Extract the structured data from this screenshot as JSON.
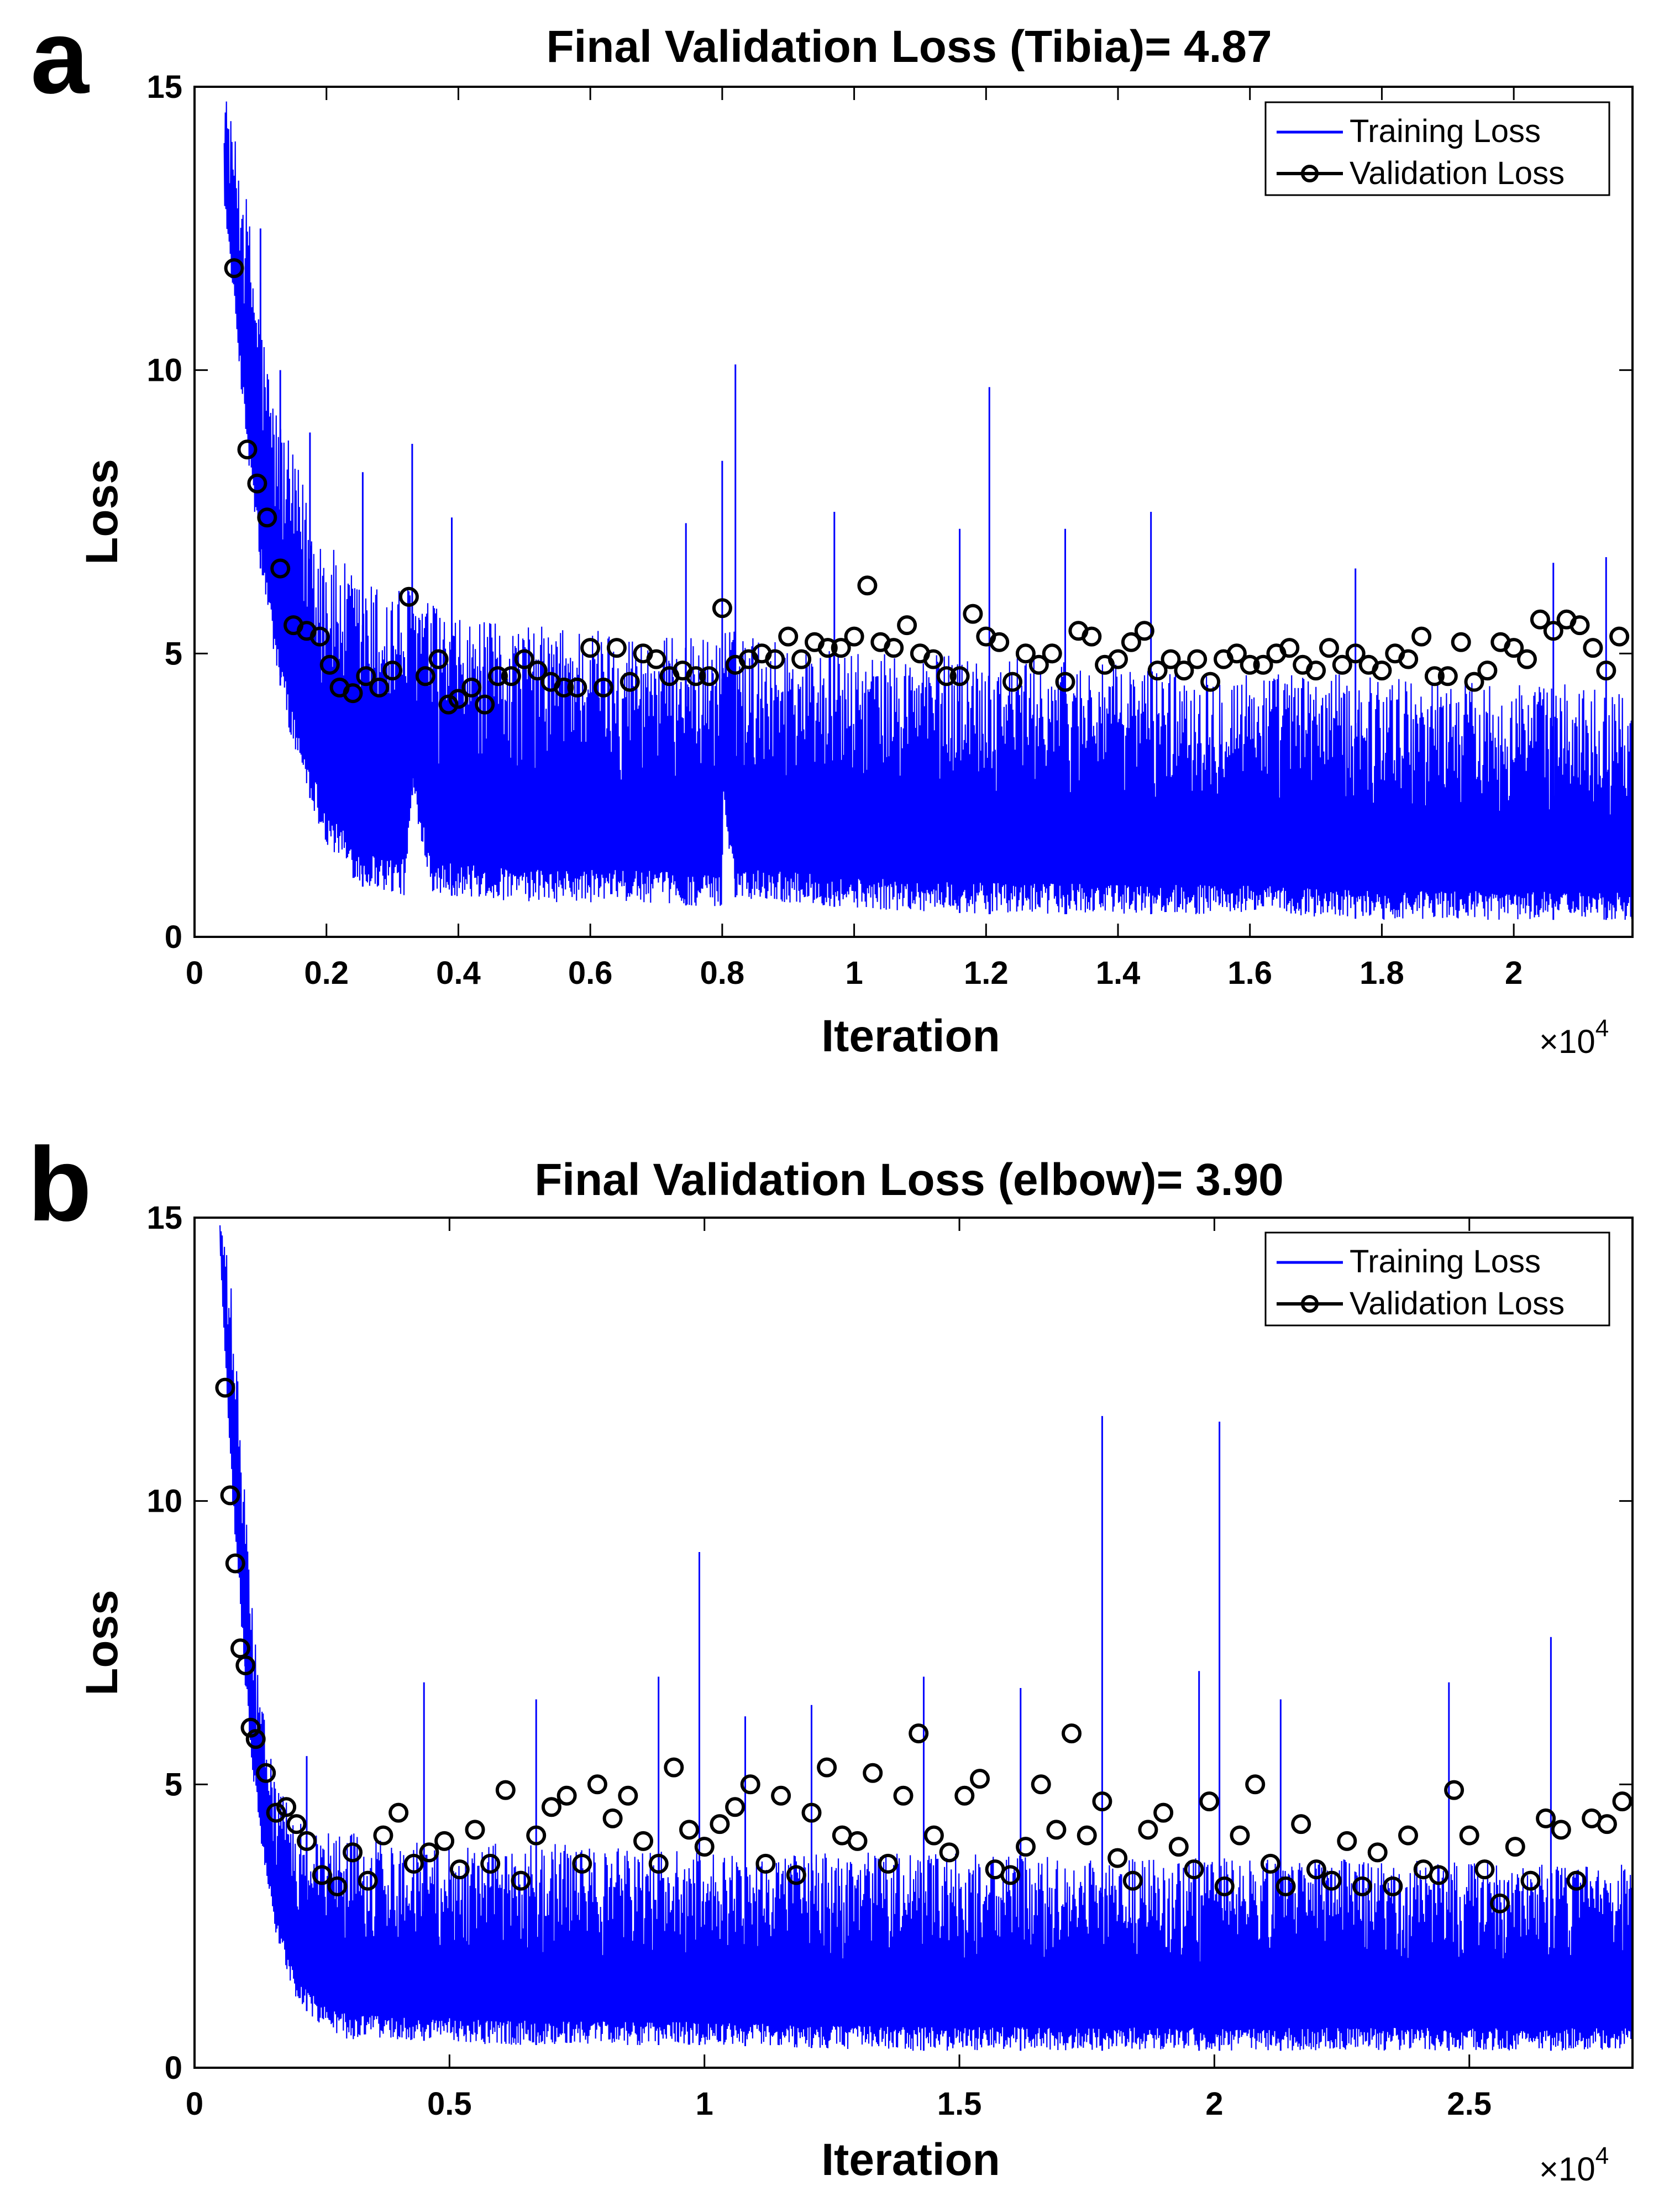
{
  "panels": [
    {
      "letter": "a",
      "multiplier_base": "×10",
      "multiplier_exp": "4",
      "chart_data": {
        "type": "line",
        "title": "Final Validation Loss (Tibia)= 4.87",
        "xlabel": "Iteration",
        "ylabel": "Loss",
        "xlim": [
          0,
          21800
        ],
        "ylim": [
          0,
          15
        ],
        "x_ticks": [
          0,
          2000,
          4000,
          6000,
          8000,
          10000,
          12000,
          14000,
          16000,
          18000,
          20000
        ],
        "x_tick_labels": [
          "0",
          "0.2",
          "0.4",
          "0.6",
          "0.8",
          "1",
          "1.2",
          "1.4",
          "1.6",
          "1.8",
          "2"
        ],
        "y_ticks": [
          0,
          5,
          10,
          15
        ],
        "y_tick_labels": [
          "0",
          "5",
          "10",
          "15"
        ],
        "grid": false,
        "legend": {
          "position": "top-right",
          "entries": [
            "Training Loss",
            "Validation Loss"
          ]
        },
        "series": [
          {
            "name": "Training Loss",
            "color": "#0000ff",
            "style": "line",
            "envelope": {
              "x": [
                450,
                800,
                1000,
                1200,
                1500,
                2000,
                2500,
                3200,
                3300,
                3600,
                4000,
                5000,
                6000,
                7000,
                7990,
                8010,
                8200,
                9000,
                10000,
                12000,
                14000,
                16000,
                18000,
                20000,
                21800
              ],
              "lower": [
                13.0,
                8.5,
                6.5,
                5.0,
                3.3,
                1.6,
                0.9,
                0.7,
                2.5,
                0.8,
                0.7,
                0.6,
                0.6,
                0.6,
                0.5,
                2.4,
                0.7,
                0.6,
                0.5,
                0.4,
                0.4,
                0.4,
                0.3,
                0.3,
                0.3
              ],
              "upper": [
                15.0,
                13.0,
                11.0,
                9.5,
                8.5,
                7.0,
                6.3,
                6.2,
                6.2,
                5.9,
                5.6,
                5.5,
                5.5,
                5.3,
                5.3,
                5.5,
                5.4,
                5.2,
                5.0,
                5.0,
                4.8,
                4.7,
                4.6,
                4.5,
                4.4
              ]
            },
            "spikes": [
              {
                "x": 1000,
                "y": 12.5
              },
              {
                "x": 1300,
                "y": 10.0
              },
              {
                "x": 1750,
                "y": 8.9
              },
              {
                "x": 2550,
                "y": 8.2
              },
              {
                "x": 3300,
                "y": 8.7
              },
              {
                "x": 3900,
                "y": 7.4
              },
              {
                "x": 7450,
                "y": 7.3
              },
              {
                "x": 8000,
                "y": 8.4
              },
              {
                "x": 8200,
                "y": 10.1
              },
              {
                "x": 9700,
                "y": 7.5
              },
              {
                "x": 11600,
                "y": 7.2
              },
              {
                "x": 12050,
                "y": 9.7
              },
              {
                "x": 13200,
                "y": 7.2
              },
              {
                "x": 14500,
                "y": 7.5
              },
              {
                "x": 17600,
                "y": 6.5
              },
              {
                "x": 20600,
                "y": 6.6
              },
              {
                "x": 21400,
                "y": 6.7
              }
            ]
          },
          {
            "name": "Validation Loss",
            "color": "#000000",
            "style": "markers",
            "x": [
              600,
              800,
              950,
              1100,
              1300,
              1500,
              1700,
              1900,
              2050,
              2200,
              2400,
              2600,
              2800,
              3000,
              3250,
              3500,
              3700,
              3850,
              4000,
              4200,
              4400,
              4600,
              4800,
              5000,
              5200,
              5400,
              5600,
              5800,
              6000,
              6200,
              6400,
              6600,
              6800,
              7000,
              7200,
              7400,
              7600,
              7800,
              8000,
              8200,
              8400,
              8600,
              8800,
              9000,
              9200,
              9400,
              9600,
              9800,
              10000,
              10200,
              10400,
              10600,
              10800,
              11000,
              11200,
              11400,
              11600,
              11800,
              12000,
              12200,
              12400,
              12600,
              12800,
              13000,
              13200,
              13400,
              13600,
              13800,
              14000,
              14200,
              14400,
              14600,
              14800,
              15000,
              15200,
              15400,
              15600,
              15800,
              16000,
              16200,
              16400,
              16600,
              16800,
              17000,
              17200,
              17400,
              17600,
              17800,
              18000,
              18200,
              18400,
              18600,
              18800,
              19000,
              19200,
              19400,
              19600,
              19800,
              20000,
              20200,
              20400,
              20600,
              20800,
              21000,
              21200,
              21400,
              21600
            ],
            "y": [
              11.8,
              8.6,
              8.0,
              7.4,
              6.5,
              5.5,
              5.4,
              5.3,
              4.8,
              4.4,
              4.3,
              4.6,
              4.4,
              4.7,
              6.0,
              4.6,
              4.9,
              4.1,
              4.2,
              4.4,
              4.1,
              4.6,
              4.6,
              4.9,
              4.7,
              4.5,
              4.4,
              4.4,
              5.1,
              4.4,
              5.1,
              4.5,
              5.0,
              4.9,
              4.6,
              4.7,
              4.6,
              4.6,
              5.8,
              4.8,
              4.9,
              5.0,
              4.9,
              5.3,
              4.9,
              5.2,
              5.1,
              5.1,
              5.3,
              6.2,
              5.2,
              5.1,
              5.5,
              5.0,
              4.9,
              4.6,
              4.6,
              5.7,
              5.3,
              5.2,
              4.5,
              5.0,
              4.8,
              5.0,
              4.5,
              5.4,
              5.3,
              4.8,
              4.9,
              5.2,
              5.4,
              4.7,
              4.9,
              4.7,
              4.9,
              4.5,
              4.9,
              5.0,
              4.8,
              4.8,
              5.0,
              5.1,
              4.8,
              4.7,
              5.1,
              4.8,
              5.0,
              4.8,
              4.7,
              5.0,
              4.9,
              5.3,
              4.6,
              4.6,
              5.2,
              4.5,
              4.7,
              5.2,
              5.1,
              4.9,
              5.6,
              5.4,
              5.6,
              5.5,
              5.1,
              4.7,
              5.3
            ]
          }
        ]
      }
    },
    {
      "letter": "b",
      "multiplier_base": "×10",
      "multiplier_exp": "4",
      "chart_data": {
        "type": "line",
        "title": "Final Validation Loss (elbow)= 3.90",
        "xlabel": "Iteration",
        "ylabel": "Loss",
        "xlim": [
          0,
          28200
        ],
        "ylim": [
          0,
          15
        ],
        "x_ticks": [
          0,
          5000,
          10000,
          15000,
          20000,
          25000
        ],
        "x_tick_labels": [
          "0",
          "0.5",
          "1",
          "1.5",
          "2",
          "2.5"
        ],
        "y_ticks": [
          0,
          5,
          10,
          15
        ],
        "y_tick_labels": [
          "0",
          "5",
          "10",
          "15"
        ],
        "grid": false,
        "legend": {
          "position": "top-right",
          "entries": [
            "Training Loss",
            "Validation Loss"
          ]
        },
        "series": [
          {
            "name": "Training Loss",
            "color": "#0000ff",
            "style": "line",
            "envelope": {
              "x": [
                500,
                700,
                900,
                1100,
                1300,
                1600,
                2000,
                2500,
                3000,
                4000,
                6000,
                8000,
                10000,
                14000,
                18000,
                22000,
                26000,
                28200
              ],
              "lower": [
                14.5,
                10.5,
                8.0,
                5.5,
                4.0,
                2.3,
                1.2,
                0.7,
                0.5,
                0.5,
                0.4,
                0.4,
                0.4,
                0.3,
                0.3,
                0.3,
                0.3,
                0.3
              ],
              "upper": [
                15.0,
                14.0,
                11.5,
                8.5,
                6.5,
                5.0,
                4.4,
                4.2,
                4.2,
                4.0,
                4.0,
                3.9,
                3.8,
                3.8,
                3.7,
                3.7,
                3.6,
                3.6
              ]
            },
            "spikes": [
              {
                "x": 1000,
                "y": 8.0
              },
              {
                "x": 2200,
                "y": 5.5
              },
              {
                "x": 4500,
                "y": 6.8
              },
              {
                "x": 6700,
                "y": 6.5
              },
              {
                "x": 9100,
                "y": 6.9
              },
              {
                "x": 9900,
                "y": 9.1
              },
              {
                "x": 10800,
                "y": 6.2
              },
              {
                "x": 12100,
                "y": 6.4
              },
              {
                "x": 14300,
                "y": 6.9
              },
              {
                "x": 16200,
                "y": 6.7
              },
              {
                "x": 17800,
                "y": 11.5
              },
              {
                "x": 19700,
                "y": 7.0
              },
              {
                "x": 20100,
                "y": 11.4
              },
              {
                "x": 21300,
                "y": 6.5
              },
              {
                "x": 24600,
                "y": 6.8
              },
              {
                "x": 26600,
                "y": 7.6
              }
            ]
          },
          {
            "name": "Validation Loss",
            "color": "#000000",
            "style": "markers",
            "x": [
              600,
              700,
              800,
              900,
              1000,
              1100,
              1200,
              1400,
              1600,
              1800,
              2000,
              2200,
              2500,
              2800,
              3100,
              3400,
              3700,
              4000,
              4300,
              4600,
              4900,
              5200,
              5500,
              5800,
              6100,
              6400,
              6700,
              7000,
              7300,
              7600,
              7900,
              8200,
              8500,
              8800,
              9100,
              9400,
              9700,
              10000,
              10300,
              10600,
              10900,
              11200,
              11500,
              11800,
              12100,
              12400,
              12700,
              13000,
              13300,
              13600,
              13900,
              14200,
              14500,
              14800,
              15100,
              15400,
              15700,
              16000,
              16300,
              16600,
              16900,
              17200,
              17500,
              17800,
              18100,
              18400,
              18700,
              19000,
              19300,
              19600,
              19900,
              20200,
              20500,
              20800,
              21100,
              21400,
              21700,
              22000,
              22300,
              22600,
              22900,
              23200,
              23500,
              23800,
              24100,
              24400,
              24700,
              25000,
              25300,
              25600,
              25900,
              26200,
              26500,
              26800,
              27100,
              27400,
              27700,
              28000
            ],
            "y": [
              12.0,
              10.1,
              8.9,
              7.4,
              7.1,
              6.0,
              5.8,
              5.2,
              4.5,
              4.6,
              4.3,
              4.0,
              3.4,
              3.2,
              3.8,
              3.3,
              4.1,
              4.5,
              3.6,
              3.8,
              4.0,
              3.5,
              4.2,
              3.6,
              4.9,
              3.3,
              4.1,
              4.6,
              4.8,
              3.6,
              5.0,
              4.4,
              4.8,
              4.0,
              3.6,
              5.3,
              4.2,
              3.9,
              4.3,
              4.6,
              5.0,
              3.6,
              4.8,
              3.4,
              4.5,
              5.3,
              4.1,
              4.0,
              5.2,
              3.6,
              4.8,
              5.9,
              4.1,
              3.8,
              4.8,
              5.1,
              3.5,
              3.4,
              3.9,
              5.0,
              4.2,
              5.9,
              4.1,
              4.7,
              3.7,
              3.3,
              4.2,
              4.5,
              3.9,
              3.5,
              4.7,
              3.2,
              4.1,
              5.0,
              3.6,
              3.2,
              4.3,
              3.5,
              3.3,
              4.0,
              3.2,
              3.8,
              3.2,
              4.1,
              3.5,
              3.4,
              4.9,
              4.1,
              3.5,
              2.9,
              3.9,
              3.3,
              4.4,
              4.2,
              3.3,
              4.4,
              4.3,
              4.7
            ]
          }
        ]
      }
    }
  ]
}
